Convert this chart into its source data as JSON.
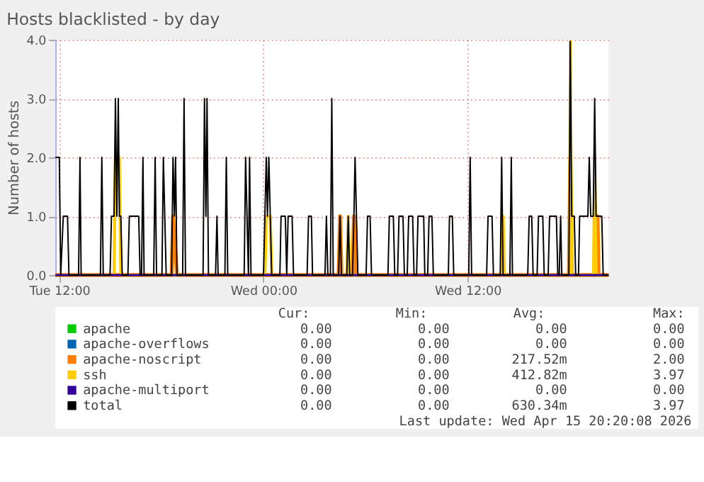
{
  "chart_data": {
    "type": "line",
    "title": "Hosts blacklisted - by day",
    "ylabel": "Number of hosts",
    "xlim": [
      "2026-04-14T11:46",
      "2026-04-15T20:17"
    ],
    "xticks": [
      {
        "value": "2026-04-14T12:00",
        "label": "Tue 12:00"
      },
      {
        "value": "2026-04-15T00:00",
        "label": "Wed 00:00"
      },
      {
        "value": "2026-04-15T12:00",
        "label": "Wed 12:00"
      }
    ],
    "ylim": [
      0,
      4
    ],
    "yticks": [
      {
        "value": 0,
        "label": "0.0"
      },
      {
        "value": 1,
        "label": "1.0"
      },
      {
        "value": 2,
        "label": "2.0"
      },
      {
        "value": 3,
        "label": "3.0"
      },
      {
        "value": 4,
        "label": "4.0"
      }
    ],
    "grid": true,
    "legend": "bottom",
    "line_style": "solid",
    "marker": "none",
    "series": [
      {
        "name": "apache",
        "color": "#00cc00",
        "values": [
          null,
          null
        ]
      },
      {
        "name": "apache-overflows",
        "color": "#0066b3",
        "values": [
          null,
          null
        ]
      },
      {
        "name": "apache-noscript",
        "color": "#ff8000",
        "x": [
          "2026-04-14T11:46",
          "2026-04-14T18:36",
          "2026-04-14T18:41",
          "2026-04-14T18:55",
          "2026-04-15T04:25",
          "2026-04-15T04:30",
          "2026-04-15T04:35",
          "2026-04-15T05:14",
          "2026-04-15T05:19",
          "2026-04-15T05:28",
          "2026-04-15T17:57",
          "2026-04-15T18:02",
          "2026-04-15T18:07",
          "2026-04-15T19:33",
          "2026-04-15T19:38",
          "2026-04-15T19:42",
          "2026-04-15T20:17"
        ],
        "values": [
          0,
          0,
          1,
          0,
          0,
          1,
          0,
          0,
          1,
          0,
          0,
          2,
          0,
          0,
          1,
          0,
          0
        ]
      },
      {
        "name": "ssh",
        "color": "#ffcc00",
        "x": [
          "2026-04-14T11:46",
          "2026-04-14T15:13",
          "2026-04-14T15:18",
          "2026-04-14T15:32",
          "2026-04-14T15:37",
          "2026-04-15T00:05",
          "2026-04-15T00:10",
          "2026-04-15T00:24",
          "2026-04-15T00:29",
          "2026-04-15T04:54",
          "2026-04-15T04:59",
          "2026-04-15T05:04",
          "2026-04-15T14:00",
          "2026-04-15T14:05",
          "2026-04-15T14:10",
          "2026-04-15T18:00",
          "2026-04-15T18:02",
          "2026-04-15T18:07",
          "2026-04-15T19:24",
          "2026-04-15T19:28",
          "2026-04-15T19:33",
          "2026-04-15T20:17"
        ],
        "values": [
          0,
          0,
          2,
          2,
          0,
          0,
          1,
          1,
          0,
          0,
          1,
          0,
          0,
          1,
          0,
          0,
          3.97,
          0,
          0,
          2,
          0,
          0
        ]
      },
      {
        "name": "apache-multiport",
        "color": "#330099",
        "x": [
          "2026-04-14T11:46",
          "2026-04-15T20:17"
        ],
        "values": [
          0,
          0
        ]
      },
      {
        "name": "total",
        "color": "#000000",
        "x": [
          "2026-04-14T11:46",
          "2026-04-14T12:00",
          "2026-04-14T12:05",
          "2026-04-14T12:14",
          "2026-04-14T12:29",
          "2026-04-14T12:34",
          "2026-04-14T13:08",
          "2026-04-14T13:13",
          "2026-04-14T13:17",
          "2026-04-14T14:25",
          "2026-04-14T14:30",
          "2026-04-14T14:35",
          "2026-04-14T14:59",
          "2026-04-14T15:04",
          "2026-04-14T15:13",
          "2026-04-14T15:18",
          "2026-04-14T15:23",
          "2026-04-14T15:28",
          "2026-04-14T15:32",
          "2026-04-14T15:37",
          "2026-04-14T15:42",
          "2026-04-14T16:02",
          "2026-04-14T16:07",
          "2026-04-14T16:40",
          "2026-04-14T16:45",
          "2026-04-14T16:50",
          "2026-04-14T16:55",
          "2026-04-14T16:59",
          "2026-04-14T17:33",
          "2026-04-14T17:38",
          "2026-04-14T17:43",
          "2026-04-14T18:02",
          "2026-04-14T18:07",
          "2026-04-14T18:12",
          "2026-04-14T18:17",
          "2026-04-14T18:36",
          "2026-04-14T18:41",
          "2026-04-14T18:46",
          "2026-04-14T18:50",
          "2026-04-14T18:55",
          "2026-04-14T19:15",
          "2026-04-14T19:20",
          "2026-04-14T19:25",
          "2026-04-14T20:27",
          "2026-04-14T20:32",
          "2026-04-14T20:37",
          "2026-04-14T20:41",
          "2026-04-14T20:46",
          "2026-04-14T21:11",
          "2026-04-14T21:16",
          "2026-04-14T21:20",
          "2026-04-14T21:44",
          "2026-04-14T21:49",
          "2026-04-14T21:54",
          "2026-04-14T22:52",
          "2026-04-14T22:57",
          "2026-04-14T23:07",
          "2026-04-14T23:11",
          "2026-04-14T23:16",
          "2026-04-15T00:00",
          "2026-04-15T00:05",
          "2026-04-15T00:10",
          "2026-04-15T00:14",
          "2026-04-15T00:19",
          "2026-04-15T00:29",
          "2026-04-15T00:58",
          "2026-04-15T01:02",
          "2026-04-15T01:17",
          "2026-04-15T01:22",
          "2026-04-15T01:27",
          "2026-04-15T01:41",
          "2026-04-15T01:46",
          "2026-04-15T02:34",
          "2026-04-15T02:39",
          "2026-04-15T02:49",
          "2026-04-15T02:53",
          "2026-04-15T03:37",
          "2026-04-15T03:42",
          "2026-04-15T03:47",
          "2026-04-15T03:56",
          "2026-04-15T04:01",
          "2026-04-15T04:06",
          "2026-04-15T04:25",
          "2026-04-15T04:30",
          "2026-04-15T04:35",
          "2026-04-15T04:54",
          "2026-04-15T04:59",
          "2026-04-15T05:04",
          "2026-04-15T05:14",
          "2026-04-15T05:19",
          "2026-04-15T05:23",
          "2026-04-15T05:28",
          "2026-04-15T05:33",
          "2026-04-15T06:02",
          "2026-04-15T06:07",
          "2026-04-15T06:16",
          "2026-04-15T06:21",
          "2026-04-15T07:19",
          "2026-04-15T07:24",
          "2026-04-15T07:38",
          "2026-04-15T07:43",
          "2026-04-15T07:53",
          "2026-04-15T07:58",
          "2026-04-15T08:12",
          "2026-04-15T08:17",
          "2026-04-15T08:27",
          "2026-04-15T08:32",
          "2026-04-15T08:46",
          "2026-04-15T08:51",
          "2026-04-15T09:00",
          "2026-04-15T09:05",
          "2026-04-15T09:25",
          "2026-04-15T09:29",
          "2026-04-15T09:39",
          "2026-04-15T09:44",
          "2026-04-15T09:54",
          "2026-04-15T09:59",
          "2026-04-15T10:52",
          "2026-04-15T10:56",
          "2026-04-15T11:06",
          "2026-04-15T11:11",
          "2026-04-15T12:04",
          "2026-04-15T12:09",
          "2026-04-15T12:14",
          "2026-04-15T13:07",
          "2026-04-15T13:12",
          "2026-04-15T13:26",
          "2026-04-15T13:31",
          "2026-04-15T13:55",
          "2026-04-15T14:00",
          "2026-04-15T14:05",
          "2026-04-15T14:29",
          "2026-04-15T14:34",
          "2026-04-15T14:38",
          "2026-04-15T15:32",
          "2026-04-15T15:37",
          "2026-04-15T15:46",
          "2026-04-15T15:51",
          "2026-04-15T16:05",
          "2026-04-15T16:10",
          "2026-04-15T16:25",
          "2026-04-15T16:30",
          "2026-04-15T16:44",
          "2026-04-15T16:49",
          "2026-04-15T17:13",
          "2026-04-15T17:18",
          "2026-04-15T17:23",
          "2026-04-15T17:28",
          "2026-04-15T17:32",
          "2026-04-15T17:57",
          "2026-04-15T18:02",
          "2026-04-15T18:07",
          "2026-04-15T18:16",
          "2026-04-15T18:21",
          "2026-04-15T18:31",
          "2026-04-15T18:35",
          "2026-04-15T19:04",
          "2026-04-15T19:09",
          "2026-04-15T19:14",
          "2026-04-15T19:23",
          "2026-04-15T19:28",
          "2026-04-15T19:33",
          "2026-04-15T19:38",
          "2026-04-15T19:53",
          "2026-04-15T19:58",
          "2026-04-15T20:17"
        ],
        "values": [
          2,
          2,
          0,
          1,
          1,
          0,
          0,
          2,
          0,
          0,
          2,
          0,
          0,
          1,
          1,
          3,
          1,
          3,
          1,
          1,
          0,
          0,
          1,
          1,
          0,
          0,
          2,
          0,
          0,
          2,
          0,
          0,
          2,
          1,
          0,
          0,
          2,
          1,
          2,
          0,
          0,
          3,
          0,
          0,
          3,
          1,
          3,
          0,
          0,
          1,
          0,
          0,
          2,
          0,
          0,
          2,
          0,
          2,
          0,
          0,
          1,
          2,
          1,
          2,
          0,
          0,
          1,
          1,
          0,
          1,
          1,
          0,
          0,
          1,
          1,
          0,
          0,
          1,
          0,
          0,
          3,
          0,
          0,
          1,
          0,
          0,
          1,
          0,
          0,
          1,
          2,
          1,
          0,
          0,
          1,
          1,
          0,
          0,
          1,
          1,
          0,
          0,
          1,
          1,
          0,
          0,
          1,
          1,
          0,
          0,
          1,
          1,
          0,
          0,
          1,
          1,
          0,
          0,
          1,
          1,
          0,
          0,
          2,
          0,
          0,
          1,
          1,
          0,
          0,
          2,
          0,
          0,
          2,
          0,
          0,
          1,
          1,
          0,
          0,
          1,
          1,
          0,
          0,
          1,
          1,
          0,
          0,
          1,
          0,
          0,
          3.97,
          1,
          1,
          0,
          0,
          1,
          1,
          2,
          1,
          1,
          3,
          1,
          1,
          1,
          0,
          0
        ]
      }
    ],
    "annotations": [
      "Cur:",
      "Min:",
      "Avg:",
      "Max:",
      "0.00",
      "0.00",
      "0.00",
      "0.00",
      "0.00",
      "0.00",
      "0.00",
      "0.00",
      "0.00",
      "0.00",
      "217.52m",
      "2.00",
      "0.00",
      "0.00",
      "412.82m",
      "3.97",
      "0.00",
      "0.00",
      "0.00",
      "0.00",
      "0.00",
      "0.00",
      "630.34m",
      "3.97",
      "Last update: Wed Apr 15 20:20:08 2026"
    ]
  }
}
